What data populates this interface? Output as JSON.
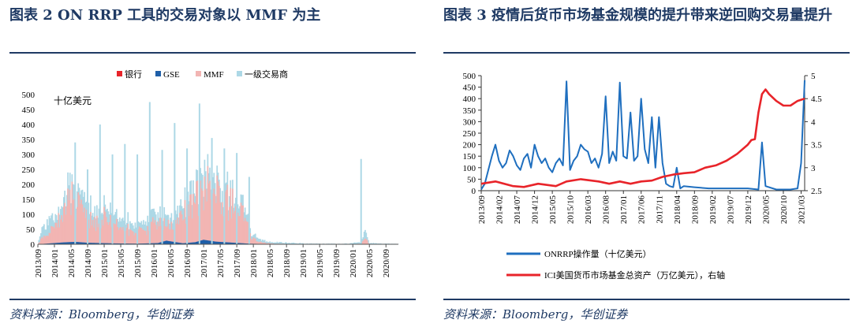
{
  "figures": [
    {
      "id": "fig2",
      "title": "图表 2   ON RRP 工具的交易对象以 MMF 为主",
      "source": "资料来源：Bloomberg，华创证券",
      "chart_data": {
        "type": "area",
        "stacked": true,
        "unit_label": "十亿美元",
        "ylim": [
          0,
          500
        ],
        "yticks": [
          0,
          50,
          100,
          150,
          200,
          250,
          300,
          350,
          400,
          450,
          500
        ],
        "x_range": [
          "2013-09",
          "2020-12"
        ],
        "x_ticks": [
          "2013/09",
          "2014/01",
          "2014/05",
          "2014/09",
          "2015/01",
          "2015/05",
          "2015/09",
          "2016/01",
          "2016/05",
          "2016/09",
          "2017/01",
          "2017/05",
          "2017/09",
          "2018/01",
          "2018/05",
          "2018/09",
          "2019/01",
          "2019/05",
          "2019/09",
          "2020/01",
          "2020/05",
          "2020/09"
        ],
        "legend": [
          "银行",
          "GSE",
          "MMF",
          "一级交易商"
        ],
        "series": [
          {
            "name": "银行",
            "color": "#e8242a",
            "x": [
              "2013-09",
              "2015-06",
              "2016-06",
              "2016-12",
              "2017-12",
              "2020-12"
            ],
            "values": [
              0,
              0,
              0,
              1,
              0,
              0
            ]
          },
          {
            "name": "GSE",
            "color": "#1f5fa8",
            "x": [
              "2013-09",
              "2014-03",
              "2014-06",
              "2014-09",
              "2015-03",
              "2015-09",
              "2016-02",
              "2016-04",
              "2016-08",
              "2016-11",
              "2017-01",
              "2017-04",
              "2017-08",
              "2017-12",
              "2018-06",
              "2019-06",
              "2020-04",
              "2020-12"
            ],
            "values": [
              0,
              6,
              8,
              5,
              3,
              2,
              4,
              12,
              3,
              6,
              14,
              8,
              5,
              2,
              0,
              0,
              0,
              0
            ]
          },
          {
            "name": "MMF",
            "color": "#f2b5b3",
            "x": [
              "2013-09",
              "2013-10",
              "2013-12",
              "2014-01",
              "2014-03",
              "2014-05",
              "2014-07",
              "2014-09",
              "2014-11",
              "2015-01",
              "2015-03",
              "2015-05",
              "2015-07",
              "2015-09",
              "2015-11",
              "2016-01",
              "2016-03",
              "2016-05",
              "2016-07",
              "2016-09",
              "2016-11",
              "2017-01",
              "2017-03",
              "2017-05",
              "2017-07",
              "2017-09",
              "2017-11",
              "2017-12",
              "2018-01",
              "2018-03",
              "2018-05",
              "2018-09",
              "2019-01",
              "2019-06",
              "2019-12",
              "2020-03",
              "2020-04",
              "2020-05",
              "2020-12"
            ],
            "values": [
              0,
              18,
              35,
              60,
              95,
              150,
              110,
              80,
              70,
              85,
              70,
              55,
              45,
              40,
              38,
              65,
              60,
              48,
              70,
              110,
              140,
              170,
              185,
              155,
              130,
              120,
              90,
              40,
              15,
              5,
              2,
              1,
              0,
              0,
              0,
              2,
              18,
              1,
              0
            ]
          },
          {
            "name": "一级交易商",
            "color": "#add8e6",
            "x": [
              "2013-09",
              "2013-10",
              "2013-12",
              "2014-01",
              "2014-03",
              "2014-05",
              "2014-07",
              "2014-09",
              "2014-11",
              "2015-01",
              "2015-03",
              "2015-05",
              "2015-07",
              "2015-09",
              "2015-11",
              "2016-01",
              "2016-03",
              "2016-05",
              "2016-07",
              "2016-09",
              "2016-11",
              "2017-01",
              "2017-03",
              "2017-05",
              "2017-07",
              "2017-09",
              "2017-11",
              "2017-12",
              "2018-01",
              "2018-03",
              "2018-05",
              "2018-09",
              "2019-01",
              "2019-06",
              "2019-12",
              "2020-03",
              "2020-04",
              "2020-05",
              "2020-12"
            ],
            "values": [
              0,
              35,
              40,
              30,
              45,
              40,
              38,
              42,
              35,
              35,
              32,
              30,
              28,
              25,
              22,
              35,
              30,
              28,
              30,
              35,
              40,
              45,
              40,
              35,
              32,
              30,
              25,
              20,
              12,
              8,
              5,
              4,
              3,
              2,
              2,
              5,
              25,
              3,
              1
            ]
          }
        ],
        "spikes": [
          {
            "series": "一级交易商",
            "x": "2014-06",
            "value": 340
          },
          {
            "series": "一级交易商",
            "x": "2014-09",
            "value": 250
          },
          {
            "series": "一级交易商",
            "x": "2014-12",
            "value": 400
          },
          {
            "series": "一级交易商",
            "x": "2015-03",
            "value": 300
          },
          {
            "series": "一级交易商",
            "x": "2015-06",
            "value": 335
          },
          {
            "series": "一级交易商",
            "x": "2015-09",
            "value": 300
          },
          {
            "series": "一级交易商",
            "x": "2015-12",
            "value": 475
          },
          {
            "series": "一级交易商",
            "x": "2016-03",
            "value": 315
          },
          {
            "series": "一级交易商",
            "x": "2016-06",
            "value": 405
          },
          {
            "series": "一级交易商",
            "x": "2016-09",
            "value": 320
          },
          {
            "series": "一级交易商",
            "x": "2016-12",
            "value": 470
          },
          {
            "series": "一级交易商",
            "x": "2017-03",
            "value": 355
          },
          {
            "series": "一级交易商",
            "x": "2017-06",
            "value": 320
          },
          {
            "series": "一级交易商",
            "x": "2017-09",
            "value": 305
          },
          {
            "series": "一级交易商",
            "x": "2017-12",
            "value": 225
          },
          {
            "series": "一级交易商",
            "x": "2020-03",
            "value": 285
          }
        ]
      }
    },
    {
      "id": "fig3",
      "title": "图表 3   疫情后货币市场基金规模的提升带来逆回购交易量提升",
      "source": "资料来源：Bloomberg，华创证券",
      "chart_data": {
        "type": "line",
        "x_range": [
          "2013-09",
          "2021-04"
        ],
        "x_ticks": [
          "2013/09",
          "2014/02",
          "2014/07",
          "2014/12",
          "2015/05",
          "2015/10",
          "2016/03",
          "2016/08",
          "2017/01",
          "2017/06",
          "2017/11",
          "2018/04",
          "2018/09",
          "2019/02",
          "2019/07",
          "2019/12",
          "2020/05",
          "2020/10",
          "2021/03"
        ],
        "y_left": {
          "ylim": [
            0,
            500
          ],
          "ticks": [
            0,
            50,
            100,
            150,
            200,
            250,
            300,
            350,
            400,
            450,
            500
          ]
        },
        "y_right": {
          "ylim": [
            2.5,
            5
          ],
          "ticks": [
            2.5,
            3,
            3.5,
            4,
            4.5,
            5
          ]
        },
        "legend": [
          "ONRRP操作量（十亿美元）",
          "ICI美国货币市场基金总资产（万亿美元），右轴"
        ],
        "series": [
          {
            "name": "ONRRP操作量（十亿美元）",
            "axis": "left",
            "color": "#1f6fbf",
            "x": [
              "2013-09",
              "2013-10",
              "2013-11",
              "2013-12",
              "2014-01",
              "2014-02",
              "2014-03",
              "2014-04",
              "2014-05",
              "2014-06",
              "2014-07",
              "2014-08",
              "2014-09",
              "2014-10",
              "2014-11",
              "2014-12",
              "2015-01",
              "2015-02",
              "2015-03",
              "2015-04",
              "2015-05",
              "2015-06",
              "2015-07",
              "2015-08",
              "2015-09",
              "2015-10",
              "2015-11",
              "2015-12",
              "2016-01",
              "2016-02",
              "2016-03",
              "2016-04",
              "2016-05",
              "2016-06",
              "2016-07",
              "2016-08",
              "2016-09",
              "2016-10",
              "2016-11",
              "2016-12",
              "2017-01",
              "2017-02",
              "2017-03",
              "2017-04",
              "2017-05",
              "2017-06",
              "2017-07",
              "2017-08",
              "2017-09",
              "2017-10",
              "2017-11",
              "2017-12",
              "2018-01",
              "2018-02",
              "2018-03",
              "2018-04",
              "2018-05",
              "2018-06",
              "2018-09",
              "2019-01",
              "2019-06",
              "2019-12",
              "2020-03",
              "2020-04",
              "2020-05",
              "2020-08",
              "2020-12",
              "2021-02",
              "2021-03",
              "2021-04"
            ],
            "values": [
              5,
              30,
              90,
              150,
              200,
              130,
              100,
              120,
              175,
              150,
              110,
              90,
              140,
              160,
              100,
              200,
              150,
              120,
              140,
              100,
              80,
              120,
              140,
              110,
              475,
              90,
              130,
              150,
              200,
              180,
              170,
              120,
              140,
              100,
              160,
              410,
              120,
              170,
              130,
              470,
              150,
              140,
              340,
              130,
              150,
              400,
              180,
              120,
              320,
              100,
              320,
              120,
              30,
              20,
              15,
              100,
              10,
              20,
              15,
              10,
              10,
              10,
              5,
              210,
              20,
              5,
              5,
              10,
              120,
              480
            ]
          },
          {
            "name": "ICI美国货币市场基金总资产（万亿美元），右轴",
            "axis": "right",
            "color": "#e8242a",
            "x": [
              "2013-09",
              "2014-01",
              "2014-06",
              "2014-09",
              "2015-01",
              "2015-06",
              "2015-09",
              "2016-01",
              "2016-06",
              "2016-09",
              "2016-12",
              "2017-03",
              "2017-06",
              "2017-09",
              "2017-12",
              "2018-03",
              "2018-06",
              "2018-09",
              "2018-12",
              "2019-03",
              "2019-06",
              "2019-09",
              "2019-12",
              "2020-01",
              "2020-02",
              "2020-03",
              "2020-04",
              "2020-05",
              "2020-06",
              "2020-08",
              "2020-10",
              "2020-12",
              "2021-02",
              "2021-04"
            ],
            "values": [
              2.65,
              2.7,
              2.6,
              2.58,
              2.65,
              2.6,
              2.7,
              2.75,
              2.7,
              2.65,
              2.7,
              2.65,
              2.7,
              2.72,
              2.8,
              2.85,
              2.88,
              2.9,
              3.0,
              3.05,
              3.15,
              3.3,
              3.5,
              3.6,
              3.62,
              4.2,
              4.6,
              4.7,
              4.6,
              4.45,
              4.35,
              4.35,
              4.45,
              4.5
            ]
          }
        ]
      }
    }
  ]
}
